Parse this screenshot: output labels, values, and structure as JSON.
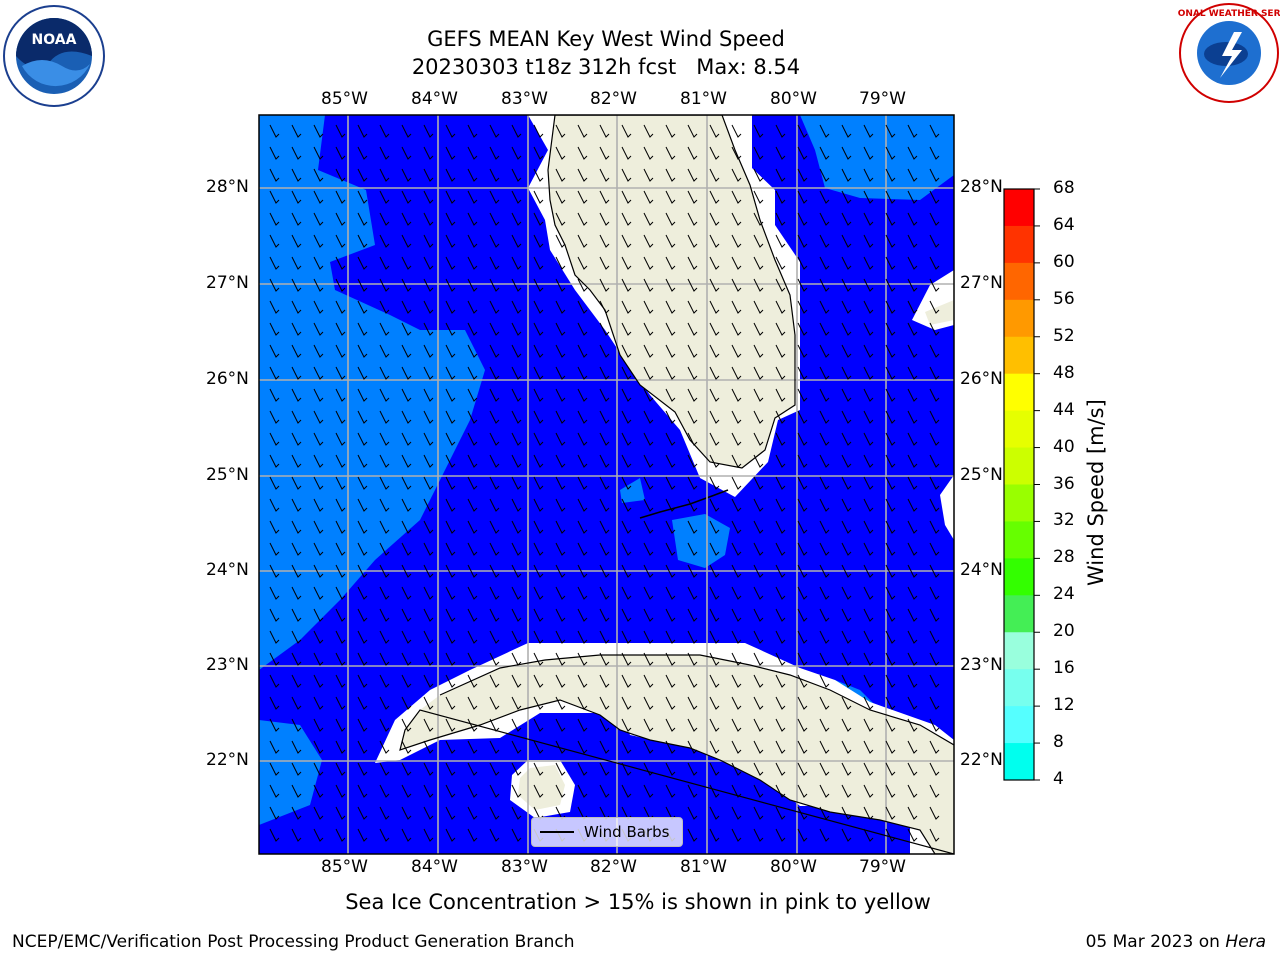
{
  "header": {
    "title_line1": "GEFS MEAN Key West Wind Speed",
    "title_line2": "20230303 t18z 312h fcst   Max: 8.54"
  },
  "axes": {
    "lon_labels": [
      "85°W",
      "84°W",
      "83°W",
      "82°W",
      "81°W",
      "80°W",
      "79°W"
    ],
    "lat_labels": [
      "28°N",
      "27°N",
      "26°N",
      "25°N",
      "24°N",
      "23°N",
      "22°N"
    ]
  },
  "colorbar": {
    "label": "Wind Speed [m/s]",
    "ticks": [
      "68",
      "64",
      "60",
      "56",
      "52",
      "48",
      "44",
      "40",
      "36",
      "32",
      "28",
      "24",
      "20",
      "16",
      "12",
      "8",
      "4"
    ],
    "colors": [
      "#ff0000",
      "#ff3300",
      "#ff6600",
      "#ff9900",
      "#ffbf00",
      "#ffff00",
      "#e6ff00",
      "#ccff00",
      "#99ff00",
      "#66ff00",
      "#33ff00",
      "#44ee55",
      "#99ffdd",
      "#77ffee",
      "#55ffff",
      "#00ffee",
      "#0080ff",
      "#0000ff"
    ]
  },
  "map": {
    "ocean_colors": {
      "band_4_8": "#0000ff",
      "band_8_12": "#0080ff"
    },
    "land_color": "#eeeedc",
    "legend_label": "Wind Barbs"
  },
  "logos": {
    "noaa_text": "NOAA",
    "nws_text": "NATIONAL WEATHER SERVICE"
  },
  "footer": {
    "note": "Sea Ice Concentration > 15% is shown in pink to yellow",
    "left": "NCEP/EMC/Verification Post Processing Product Generation Branch",
    "right_date": "05 Mar 2023 on ",
    "right_host": "Hera"
  }
}
